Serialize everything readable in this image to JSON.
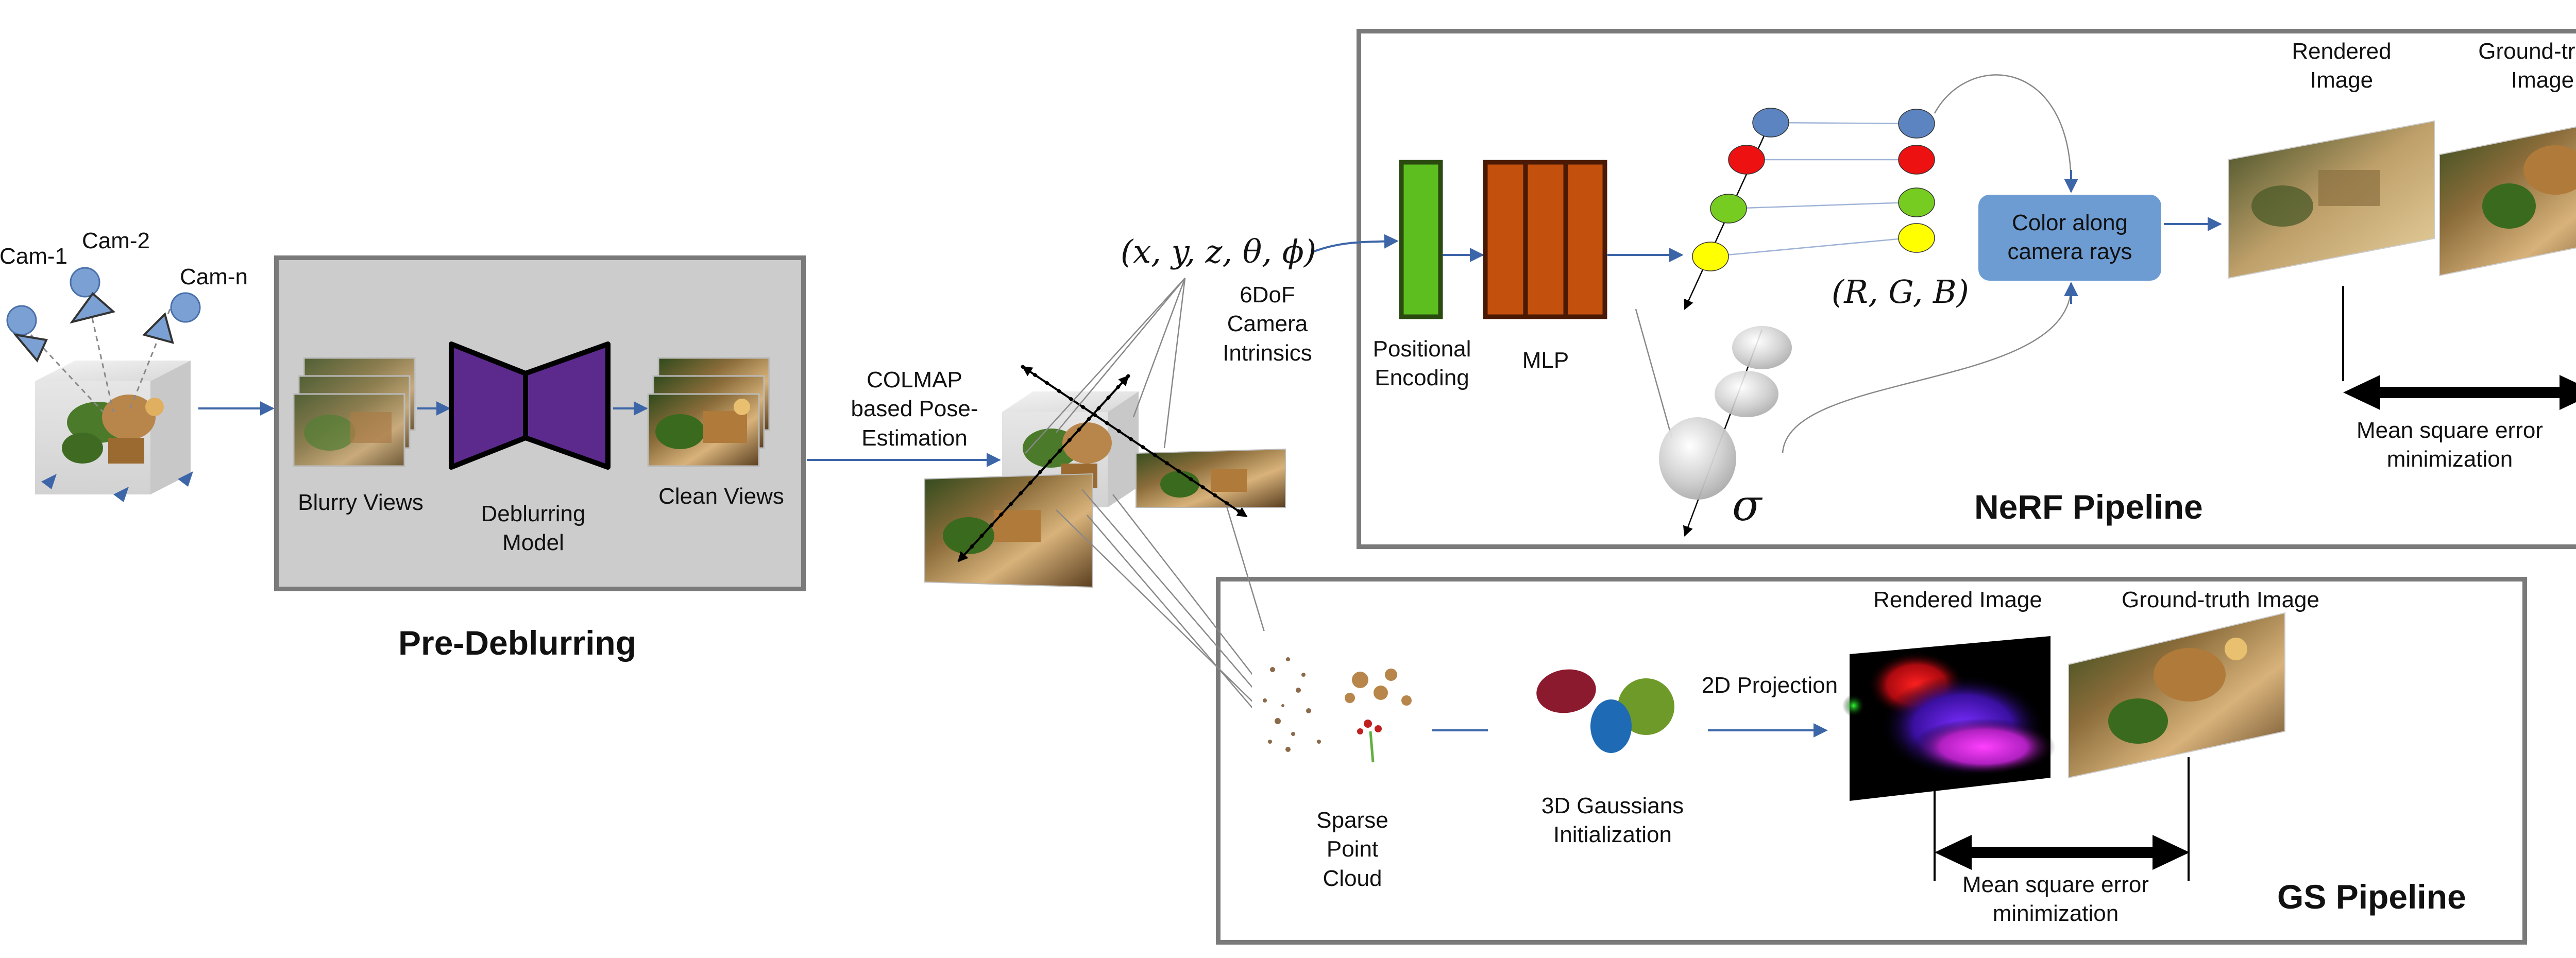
{
  "labels": {
    "cam_1": "Cam-1",
    "cam_2": "Cam-2",
    "cam_n": "Cam-n",
    "blurry_views": "Blurry Views",
    "deblurring_model": "Deblurring\nModel",
    "clean_views": "Clean Views",
    "pre_deblurring": "Pre-Deblurring",
    "colmap": "COLMAP\nbased Pose-\nEstimation",
    "pose_params": "(x, y, z, θ, ϕ)",
    "six_dof": "6DoF\nCamera\nIntrinsics",
    "positional_encoding": "Positional\nEncoding",
    "mlp": "MLP",
    "rgb": "(R, G, B)",
    "sigma": "σ",
    "color_along_rays": "Color along\ncamera rays",
    "nerf_rendered": "Rendered\nImage",
    "nerf_ground_truth": "Ground-truth\nImage",
    "nerf_mse": "Mean square error\nminimization",
    "nerf_pipeline": "NeRF Pipeline",
    "sparse_point_cloud": "Sparse\nPoint\nCloud",
    "gaussians_init": "3D Gaussians\nInitialization",
    "projection_2d": "2D Projection",
    "gs_rendered": "Rendered Image",
    "gs_ground_truth": "Ground-truth Image",
    "gs_mse": "Mean square error\nminimization",
    "gs_pipeline": "GS Pipeline"
  },
  "colors": {
    "arrow": "#3d66a8",
    "panel_border": "#7a7a7a",
    "pre_panel_fill": "#cccccc",
    "deblur_fill": "#5c2a8c",
    "encoding_fill": "#5cbf1f",
    "mlp_fill": "#c4500e",
    "color_box_fill": "#6d9cd3",
    "node_blue": "#5b84c0",
    "node_red": "#ee1111",
    "node_green": "#77cc22",
    "node_yellow": "#ffff00"
  }
}
